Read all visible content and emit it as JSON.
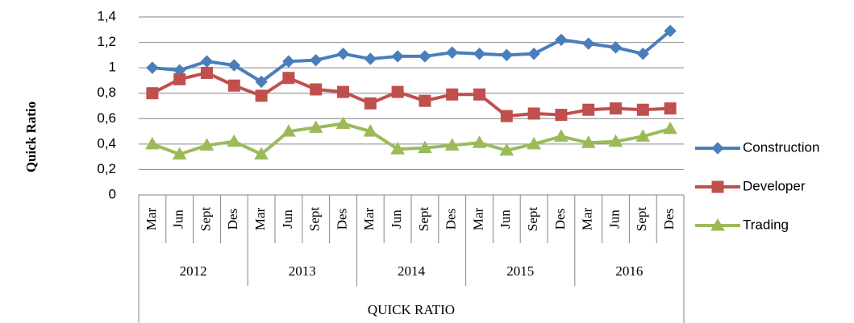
{
  "chart_data": {
    "type": "line",
    "y_label": "Quick Ratio",
    "x_label": "QUICK RATIO",
    "categories": [
      "Mar",
      "Jun",
      "Sept",
      "Des",
      "Mar",
      "Jun",
      "Sept",
      "Des",
      "Mar",
      "Jun",
      "Sept",
      "Des",
      "Mar",
      "Jun",
      "Sept",
      "Des",
      "Mar",
      "Jun",
      "Sept",
      "Des"
    ],
    "groups": [
      "2012",
      "2013",
      "2014",
      "2015",
      "2016"
    ],
    "series": [
      {
        "name": "Construction",
        "color": "#4a7ebb",
        "marker": "diamond",
        "values": [
          1.0,
          0.98,
          1.05,
          1.02,
          0.89,
          1.05,
          1.06,
          1.11,
          1.07,
          1.09,
          1.09,
          1.12,
          1.11,
          1.1,
          1.11,
          1.22,
          1.19,
          1.16,
          1.11,
          1.29
        ]
      },
      {
        "name": "Developer",
        "color": "#c0504d",
        "marker": "square",
        "values": [
          0.8,
          0.91,
          0.96,
          0.86,
          0.78,
          0.92,
          0.83,
          0.81,
          0.72,
          0.81,
          0.74,
          0.79,
          0.79,
          0.62,
          0.64,
          0.63,
          0.67,
          0.68,
          0.67,
          0.68
        ]
      },
      {
        "name": "Trading",
        "color": "#9bbb59",
        "marker": "triangle",
        "values": [
          0.4,
          0.32,
          0.39,
          0.42,
          0.32,
          0.5,
          0.53,
          0.56,
          0.5,
          0.36,
          0.37,
          0.39,
          0.41,
          0.35,
          0.4,
          0.46,
          0.41,
          0.42,
          0.46,
          0.52
        ]
      }
    ],
    "ylim": [
      0,
      1.4
    ],
    "yticks": [
      0,
      {
        "value": 0.2,
        "label": "0,2"
      },
      {
        "value": 0.4,
        "label": "0,4"
      },
      {
        "value": 0.6,
        "label": "0,6"
      },
      {
        "value": 0.8,
        "label": "0,8"
      },
      1,
      {
        "value": 1.2,
        "label": "1,2"
      },
      {
        "value": 1.4,
        "label": "1,4"
      }
    ],
    "grid": true,
    "legend": "right"
  }
}
